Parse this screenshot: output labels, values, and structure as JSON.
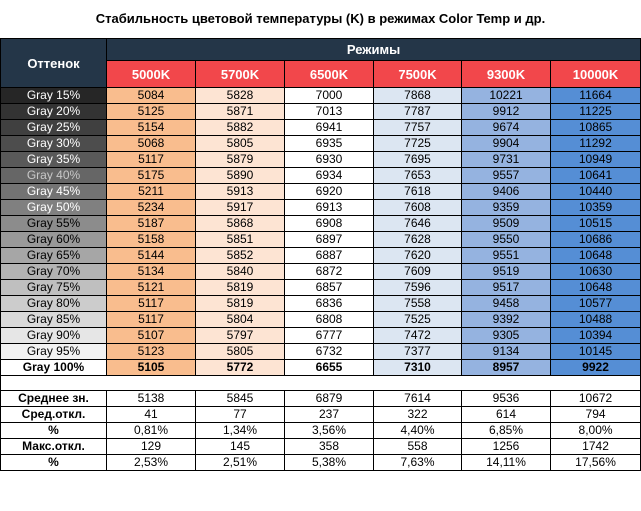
{
  "title": "Стабильность цветовой температуры (K) в режимах Color Temp и др.",
  "header": {
    "shade_label": "Оттенок",
    "modes_label": "Режимы",
    "modes": [
      "5000K",
      "5700K",
      "6500K",
      "7500K",
      "9300K",
      "10000K"
    ]
  },
  "colors": {
    "header_dark": "#243648",
    "header_red": "#f2474b",
    "col_5000": "#f9bd8e",
    "col_5700": "#fde4d3",
    "col_6500": "#ffffff",
    "col_7500": "#dce6f2",
    "col_9300": "#95b3e0",
    "col_10000": "#558ed5"
  },
  "rows": [
    {
      "label": "Gray 15%",
      "gray": 15,
      "values": [
        "5084",
        "5828",
        "7000",
        "7868",
        "10221",
        "11664"
      ]
    },
    {
      "label": "Gray 20%",
      "gray": 20,
      "values": [
        "5125",
        "5871",
        "7013",
        "7787",
        "9912",
        "11225"
      ]
    },
    {
      "label": "Gray 25%",
      "gray": 25,
      "values": [
        "5154",
        "5882",
        "6941",
        "7757",
        "9674",
        "10865"
      ]
    },
    {
      "label": "Gray 30%",
      "gray": 30,
      "values": [
        "5068",
        "5805",
        "6935",
        "7725",
        "9904",
        "11292"
      ]
    },
    {
      "label": "Gray 35%",
      "gray": 35,
      "values": [
        "5117",
        "5879",
        "6930",
        "7695",
        "9731",
        "10949"
      ]
    },
    {
      "label": "Gray 40%",
      "gray": 40,
      "values": [
        "5175",
        "5890",
        "6934",
        "7653",
        "9557",
        "10641"
      ]
    },
    {
      "label": "Gray 45%",
      "gray": 45,
      "values": [
        "5211",
        "5913",
        "6920",
        "7618",
        "9406",
        "10440"
      ]
    },
    {
      "label": "Gray 50%",
      "gray": 50,
      "values": [
        "5234",
        "5917",
        "6913",
        "7608",
        "9359",
        "10359"
      ]
    },
    {
      "label": "Gray 55%",
      "gray": 55,
      "values": [
        "5187",
        "5868",
        "6908",
        "7646",
        "9509",
        "10515"
      ]
    },
    {
      "label": "Gray 60%",
      "gray": 60,
      "values": [
        "5158",
        "5851",
        "6897",
        "7628",
        "9550",
        "10686"
      ]
    },
    {
      "label": "Gray 65%",
      "gray": 65,
      "values": [
        "5144",
        "5852",
        "6887",
        "7620",
        "9551",
        "10648"
      ]
    },
    {
      "label": "Gray 70%",
      "gray": 70,
      "values": [
        "5134",
        "5840",
        "6872",
        "7609",
        "9519",
        "10630"
      ]
    },
    {
      "label": "Gray 75%",
      "gray": 75,
      "values": [
        "5121",
        "5819",
        "6857",
        "7596",
        "9517",
        "10648"
      ]
    },
    {
      "label": "Gray 80%",
      "gray": 80,
      "values": [
        "5117",
        "5819",
        "6836",
        "7558",
        "9458",
        "10577"
      ]
    },
    {
      "label": "Gray 85%",
      "gray": 85,
      "values": [
        "5117",
        "5804",
        "6808",
        "7525",
        "9392",
        "10488"
      ]
    },
    {
      "label": "Gray 90%",
      "gray": 90,
      "values": [
        "5107",
        "5797",
        "6777",
        "7472",
        "9305",
        "10394"
      ]
    },
    {
      "label": "Gray 95%",
      "gray": 95,
      "values": [
        "5123",
        "5805",
        "6732",
        "7377",
        "9134",
        "10145"
      ]
    },
    {
      "label": "Gray 100%",
      "gray": 100,
      "values": [
        "5105",
        "5772",
        "6655",
        "7310",
        "8957",
        "9922"
      ],
      "bold": true
    }
  ],
  "stats": [
    {
      "label": "Среднее зн.",
      "values": [
        "5138",
        "5845",
        "6879",
        "7614",
        "9536",
        "10672"
      ]
    },
    {
      "label": "Сред.откл.",
      "values": [
        "41",
        "77",
        "237",
        "322",
        "614",
        "794"
      ]
    },
    {
      "label": "%",
      "values": [
        "0,81%",
        "1,34%",
        "3,56%",
        "4,40%",
        "6,85%",
        "8,00%"
      ]
    },
    {
      "label": "Макс.откл.",
      "values": [
        "129",
        "145",
        "358",
        "558",
        "1256",
        "1742"
      ]
    },
    {
      "label": "%",
      "values": [
        "2,53%",
        "2,51%",
        "5,38%",
        "7,63%",
        "14,11%",
        "17,56%"
      ]
    }
  ],
  "chart_data": {
    "type": "table",
    "title": "Стабильность цветовой температуры (K) в режимах Color Temp и др.",
    "columns": [
      "5000K",
      "5700K",
      "6500K",
      "7500K",
      "9300K",
      "10000K"
    ],
    "rows": [
      "Gray 15%",
      "Gray 20%",
      "Gray 25%",
      "Gray 30%",
      "Gray 35%",
      "Gray 40%",
      "Gray 45%",
      "Gray 50%",
      "Gray 55%",
      "Gray 60%",
      "Gray 65%",
      "Gray 70%",
      "Gray 75%",
      "Gray 80%",
      "Gray 85%",
      "Gray 90%",
      "Gray 95%",
      "Gray 100%"
    ],
    "series": [
      {
        "name": "5000K",
        "values": [
          5084,
          5125,
          5154,
          5068,
          5117,
          5175,
          5211,
          5234,
          5187,
          5158,
          5144,
          5134,
          5121,
          5117,
          5117,
          5107,
          5123,
          5105
        ]
      },
      {
        "name": "5700K",
        "values": [
          5828,
          5871,
          5882,
          5805,
          5879,
          5890,
          5913,
          5917,
          5868,
          5851,
          5852,
          5840,
          5819,
          5819,
          5804,
          5797,
          5805,
          5772
        ]
      },
      {
        "name": "6500K",
        "values": [
          7000,
          7013,
          6941,
          6935,
          6930,
          6934,
          6920,
          6913,
          6908,
          6897,
          6887,
          6872,
          6857,
          6836,
          6808,
          6777,
          6732,
          6655
        ]
      },
      {
        "name": "7500K",
        "values": [
          7868,
          7787,
          7757,
          7725,
          7695,
          7653,
          7618,
          7608,
          7646,
          7628,
          7620,
          7609,
          7596,
          7558,
          7525,
          7472,
          7377,
          7310
        ]
      },
      {
        "name": "9300K",
        "values": [
          10221,
          9912,
          9674,
          9904,
          9731,
          9557,
          9406,
          9359,
          9509,
          9550,
          9551,
          9519,
          9517,
          9458,
          9392,
          9305,
          9134,
          8957
        ]
      },
      {
        "name": "10000K",
        "values": [
          11664,
          11225,
          10865,
          11292,
          10949,
          10641,
          10440,
          10359,
          10515,
          10686,
          10648,
          10630,
          10648,
          10577,
          10488,
          10394,
          10145,
          9922
        ]
      }
    ]
  }
}
